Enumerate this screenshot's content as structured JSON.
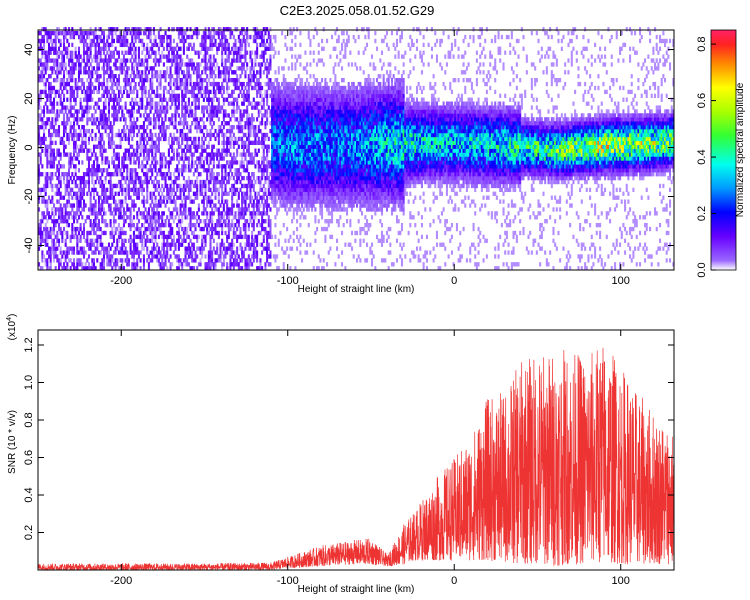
{
  "title": "C2E3.2025.058.01.52.G29",
  "chart_data": [
    {
      "type": "heatmap",
      "xlabel": "Height of straight line (km)",
      "ylabel": "Frequency (Hz)",
      "xlim": [
        -250,
        132
      ],
      "ylim": [
        -50,
        48
      ],
      "xticks": [
        -200,
        -100,
        0,
        100
      ],
      "yticks": [
        -40,
        -20,
        0,
        20,
        40
      ],
      "colorbar": {
        "label": "Normalized spectral amplitude",
        "range": [
          0.0,
          0.85
        ],
        "ticks": [
          0.0,
          0.2,
          0.4,
          0.6,
          0.8
        ]
      },
      "ridge": {
        "description_x": [
          -170,
          -120,
          -100,
          -60,
          -30,
          0,
          30,
          60,
          90,
          120,
          132
        ],
        "center_hz": [
          4,
          3,
          0,
          0,
          1,
          1,
          0,
          -2,
          0,
          1,
          2
        ],
        "peak_amplitude": [
          0.2,
          0.25,
          0.3,
          0.3,
          0.4,
          0.35,
          0.4,
          0.5,
          0.6,
          0.55,
          0.5
        ]
      }
    },
    {
      "type": "line",
      "xlabel": "Height of straight line (km)",
      "ylabel": "SNR (10 * v/v)",
      "ymultiplier": "(x10",
      "ymultiplier_exp": "4",
      "ymultiplier_close": ")",
      "xlim": [
        -250,
        132
      ],
      "ylim": [
        0,
        1.28
      ],
      "xticks": [
        -200,
        -100,
        0,
        100
      ],
      "yticks": [
        0.2,
        0.4,
        0.6,
        0.8,
        1.0,
        1.2
      ],
      "series_color": "#ee3333",
      "envelope": {
        "x": [
          -250,
          -200,
          -150,
          -110,
          -100,
          -80,
          -60,
          -50,
          -40,
          -30,
          -25,
          -10,
          0,
          10,
          20,
          30,
          40,
          50,
          60,
          70,
          80,
          90,
          100,
          110,
          120,
          132
        ],
        "upper": [
          0.035,
          0.035,
          0.035,
          0.04,
          0.07,
          0.13,
          0.16,
          0.17,
          0.08,
          0.25,
          0.3,
          0.5,
          0.6,
          0.72,
          0.92,
          0.95,
          1.12,
          1.16,
          1.18,
          1.18,
          1.15,
          1.24,
          1.1,
          0.95,
          0.85,
          0.75
        ],
        "lower": [
          0.0,
          0.0,
          0.0,
          0.0,
          0.01,
          0.02,
          0.03,
          0.03,
          0.02,
          0.03,
          0.05,
          0.05,
          0.05,
          0.05,
          0.05,
          0.04,
          0.03,
          0.03,
          0.02,
          0.03,
          0.03,
          0.04,
          0.03,
          0.03,
          0.03,
          0.03
        ]
      }
    }
  ]
}
